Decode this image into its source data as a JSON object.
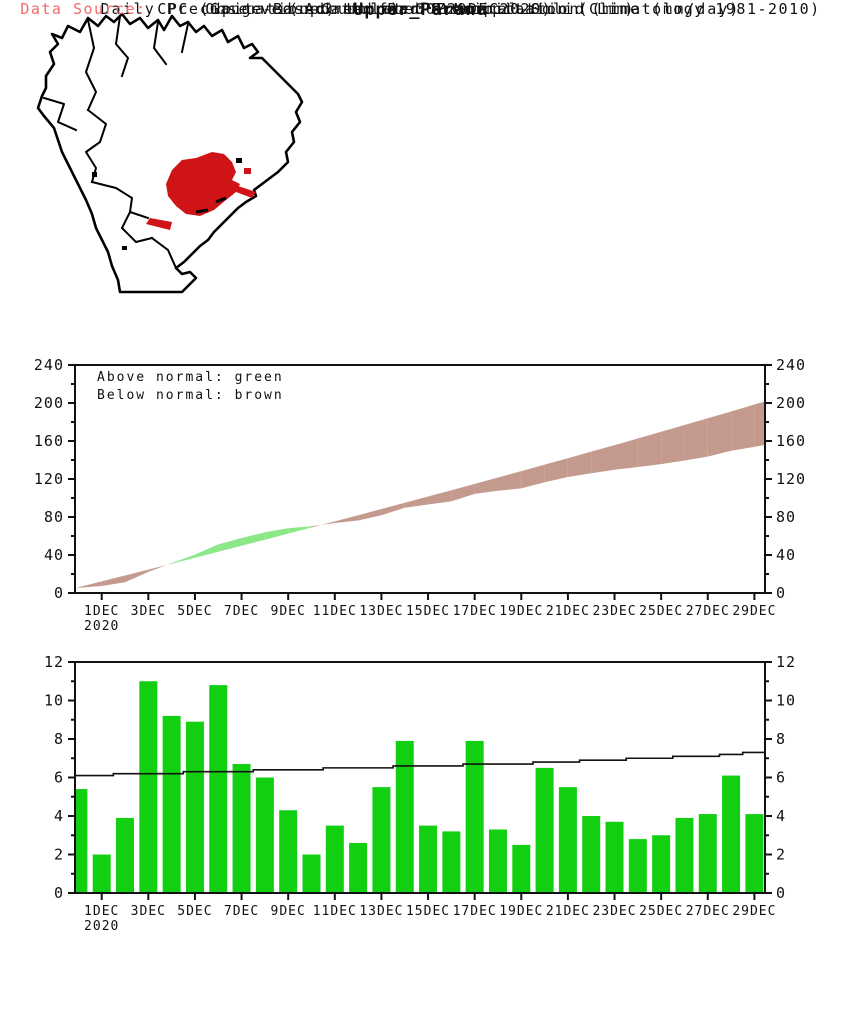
{
  "page_title": "Upper_Parana",
  "colors": {
    "bar_green": "#12cf12",
    "band_green": "#8ce788",
    "band_brown": "#c49a8f",
    "region_red": "#cf1418",
    "source_red": "#f26a6a",
    "axis_black": "#111111"
  },
  "accum_chart": {
    "title": "Observed Accumulated Precipitation (mm)",
    "legend_line1": "Above normal: green",
    "legend_line2": "Below normal: brown"
  },
  "daily_chart": {
    "title": "Daily Precipitation-Green Bar & Normal-Solid Line (mm/day)"
  },
  "footer": {
    "source_label": "Data Source:",
    "source_text": "CPC (Gauge-Based) Unified Precipitation (Climatology 1981-2010)",
    "updated": "(updated on 00Z29DEC2020)"
  },
  "chart_data": [
    {
      "type": "area",
      "title": "Observed Accumulated Precipitation (mm)",
      "ylabel": "mm",
      "ylim": [
        0,
        240
      ],
      "y_ticks": [
        0,
        40,
        80,
        120,
        160,
        200,
        240
      ],
      "y_minor_step": 20,
      "x_tick_labels": [
        "1DEC",
        "3DEC",
        "5DEC",
        "7DEC",
        "9DEC",
        "11DEC",
        "13DEC",
        "15DEC",
        "17DEC",
        "19DEC",
        "21DEC",
        "23DEC",
        "25DEC",
        "27DEC",
        "29DEC"
      ],
      "x_first_tick_sublabel": "2020",
      "dates": [
        "30NOV",
        "1DEC",
        "2DEC",
        "3DEC",
        "4DEC",
        "5DEC",
        "6DEC",
        "7DEC",
        "8DEC",
        "9DEC",
        "10DEC",
        "11DEC",
        "12DEC",
        "13DEC",
        "14DEC",
        "15DEC",
        "16DEC",
        "17DEC",
        "18DEC",
        "19DEC",
        "20DEC",
        "21DEC",
        "22DEC",
        "23DEC",
        "24DEC",
        "25DEC",
        "26DEC",
        "27DEC",
        "28DEC",
        "29DEC"
      ],
      "series": [
        {
          "name": "observed_accumulated",
          "values": [
            5.4,
            7.4,
            11.3,
            22.3,
            31.5,
            40.4,
            51.2,
            57.9,
            63.9,
            68.2,
            70.2,
            73.7,
            76.3,
            81.8,
            89.7,
            93.2,
            96.4,
            104.3,
            107.6,
            110.1,
            116.6,
            122.1,
            126.1,
            129.8,
            132.6,
            135.6,
            139.5,
            143.6,
            149.7,
            153.8
          ]
        },
        {
          "name": "normal_accumulated",
          "values": [
            6.1,
            12.2,
            18.4,
            24.6,
            30.8,
            37.1,
            43.4,
            49.7,
            56.1,
            62.5,
            68.9,
            75.4,
            81.9,
            88.4,
            95.0,
            101.6,
            108.2,
            114.9,
            121.6,
            128.3,
            135.1,
            141.9,
            148.8,
            155.7,
            162.7,
            169.7,
            176.8,
            183.9,
            191.1,
            198.4
          ]
        }
      ],
      "above_normal_color_name": "green",
      "below_normal_color_name": "brown",
      "legend_position": "top-left",
      "grid": false
    },
    {
      "type": "bar",
      "title": "Daily Precipitation-Green Bar & Normal-Solid Line (mm/day)",
      "ylim": [
        0,
        12
      ],
      "y_ticks": [
        0,
        2,
        4,
        6,
        8,
        10,
        12
      ],
      "y_minor_step": 1,
      "x_tick_labels": [
        "1DEC",
        "3DEC",
        "5DEC",
        "7DEC",
        "9DEC",
        "11DEC",
        "13DEC",
        "15DEC",
        "17DEC",
        "19DEC",
        "21DEC",
        "23DEC",
        "25DEC",
        "27DEC",
        "29DEC"
      ],
      "x_first_tick_sublabel": "2020",
      "dates": [
        "30NOV",
        "1DEC",
        "2DEC",
        "3DEC",
        "4DEC",
        "5DEC",
        "6DEC",
        "7DEC",
        "8DEC",
        "9DEC",
        "10DEC",
        "11DEC",
        "12DEC",
        "13DEC",
        "14DEC",
        "15DEC",
        "16DEC",
        "17DEC",
        "18DEC",
        "19DEC",
        "20DEC",
        "21DEC",
        "22DEC",
        "23DEC",
        "24DEC",
        "25DEC",
        "26DEC",
        "27DEC",
        "28DEC",
        "29DEC"
      ],
      "bar_values": [
        5.4,
        2.0,
        3.9,
        11.0,
        9.2,
        8.9,
        10.8,
        6.7,
        6.0,
        4.3,
        2.0,
        3.5,
        2.6,
        5.5,
        7.9,
        3.5,
        3.2,
        7.9,
        3.3,
        2.5,
        6.5,
        5.5,
        4.0,
        3.7,
        2.8,
        3.0,
        3.9,
        4.1,
        6.1,
        4.1
      ],
      "line_values": [
        6.1,
        6.1,
        6.2,
        6.2,
        6.2,
        6.3,
        6.3,
        6.3,
        6.4,
        6.4,
        6.4,
        6.5,
        6.5,
        6.5,
        6.6,
        6.6,
        6.6,
        6.7,
        6.7,
        6.7,
        6.8,
        6.8,
        6.9,
        6.9,
        7.0,
        7.0,
        7.1,
        7.1,
        7.2,
        7.3
      ],
      "grid": false
    }
  ]
}
